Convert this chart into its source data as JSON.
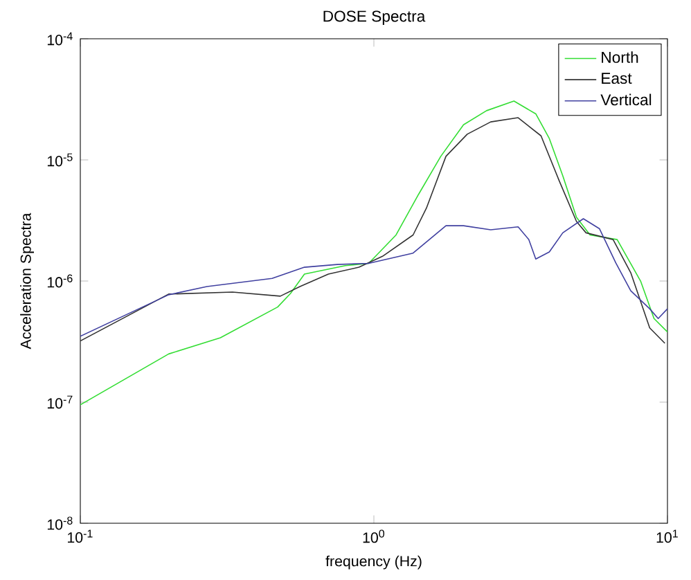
{
  "chart_data": {
    "type": "line",
    "title": "DOSE Spectra",
    "xlabel": "frequency (Hz)",
    "ylabel": "Acceleration Spectra",
    "log": "xy",
    "grid": false,
    "legend": "top right",
    "marker": "none",
    "line_style": "solid",
    "xlim": [
      0.1,
      10
    ],
    "ylim": [
      1e-08,
      0.0001
    ],
    "xticks": [
      {
        "value": 0.1,
        "label": "10$^{-1}$"
      },
      {
        "value": 1,
        "label": "10$^{0}$"
      },
      {
        "value": 10,
        "label": "10$^{1}$"
      }
    ],
    "yticks": [
      {
        "value": 1e-08,
        "label": "10$^{-8}$"
      },
      {
        "value": 1e-07,
        "label": "10$^{-7}$"
      },
      {
        "value": 1e-06,
        "label": "10$^{-6}$"
      },
      {
        "value": 1e-05,
        "label": "10$^{-5}$"
      },
      {
        "value": 0.0001,
        "label": "10$^{-4}$"
      }
    ],
    "series": [
      {
        "name": "North",
        "color": "#33dd33",
        "x": [
          0.1,
          0.2,
          0.3,
          0.47,
          0.52,
          0.58,
          0.8,
          0.96,
          1.19,
          1.42,
          1.69,
          2.02,
          2.42,
          3.0,
          3.56,
          3.96,
          4.4,
          4.9,
          5.45,
          6.74,
          8.1,
          9.0,
          10
        ],
        "values": [
          9.5e-08,
          2.5e-07,
          3.4e-07,
          6.1e-07,
          7.9e-07,
          1.14e-06,
          1.34e-06,
          1.4e-06,
          2.4e-06,
          5.2e-06,
          1.07e-05,
          1.95e-05,
          2.55e-05,
          3.06e-05,
          2.4e-05,
          1.5e-05,
          7.4e-06,
          3.36e-06,
          2.4e-06,
          2.2e-06,
          1e-06,
          4.9e-07,
          3.8e-07
        ]
      },
      {
        "name": "East",
        "color": "#333333",
        "x": [
          0.1,
          0.2,
          0.33,
          0.48,
          0.56,
          0.7,
          0.89,
          1.07,
          1.36,
          1.51,
          1.76,
          2.08,
          2.5,
          3.1,
          3.71,
          4.27,
          4.9,
          5.28,
          6.53,
          7.5,
          8.7,
          9.8
        ],
        "values": [
          3.2e-07,
          7.8e-07,
          8.1e-07,
          7.5e-07,
          9e-07,
          1.14e-06,
          1.3e-06,
          1.6e-06,
          2.4e-06,
          4e-06,
          1.07e-05,
          1.63e-05,
          2.06e-05,
          2.23e-05,
          1.58e-05,
          6.8e-06,
          3.1e-06,
          2.5e-06,
          2.2e-06,
          1.17e-06,
          4.1e-07,
          3.06e-07
        ]
      },
      {
        "name": "Vertical",
        "color": "#4040a0",
        "x": [
          0.1,
          0.2,
          0.27,
          0.45,
          0.58,
          0.75,
          0.96,
          1.36,
          1.76,
          2.02,
          2.5,
          3.1,
          3.37,
          3.56,
          3.96,
          4.4,
          5.17,
          5.87,
          6.67,
          7.5,
          8.7,
          9.3,
          10
        ],
        "values": [
          3.5e-07,
          7.7e-07,
          9e-07,
          1.05e-06,
          1.3e-06,
          1.37e-06,
          1.4e-06,
          1.7e-06,
          2.86e-06,
          2.86e-06,
          2.65e-06,
          2.8e-06,
          2.2e-06,
          1.52e-06,
          1.74e-06,
          2.5e-06,
          3.27e-06,
          2.7e-06,
          1.41e-06,
          8.3e-07,
          5.9e-07,
          4.9e-07,
          5.9e-07
        ]
      }
    ]
  }
}
